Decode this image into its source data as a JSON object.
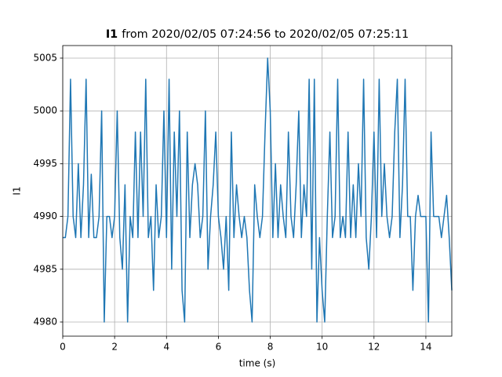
{
  "chart_data": {
    "type": "line",
    "title": {
      "bold": "I1",
      "text": "from 2020/02/05 07:24:56 to 2020/02/05 07:25:11"
    },
    "xlabel": "time (s)",
    "ylabel": "I1",
    "x": [
      0,
      0.1,
      0.2,
      0.3,
      0.4,
      0.5,
      0.6,
      0.7,
      0.8,
      0.9,
      1,
      1.1,
      1.2,
      1.3,
      1.4,
      1.5,
      1.6,
      1.7,
      1.8,
      1.9,
      2,
      2.1,
      2.2,
      2.3,
      2.4,
      2.5,
      2.6,
      2.7,
      2.8,
      2.9,
      3,
      3.1,
      3.2,
      3.3,
      3.4,
      3.5,
      3.6,
      3.7,
      3.8,
      3.9,
      4,
      4.1,
      4.2,
      4.3,
      4.4,
      4.5,
      4.6,
      4.7,
      4.8,
      4.9,
      5,
      5.1,
      5.2,
      5.3,
      5.4,
      5.5,
      5.6,
      5.7,
      5.8,
      5.9,
      6,
      6.1,
      6.2,
      6.3,
      6.4,
      6.5,
      6.6,
      6.7,
      6.8,
      6.9,
      7,
      7.1,
      7.2,
      7.3,
      7.4,
      7.5,
      7.6,
      7.7,
      7.8,
      7.9,
      8,
      8.1,
      8.2,
      8.3,
      8.4,
      8.5,
      8.6,
      8.7,
      8.8,
      8.9,
      9,
      9.1,
      9.2,
      9.3,
      9.4,
      9.5,
      9.6,
      9.7,
      9.8,
      9.9,
      10,
      10.1,
      10.2,
      10.3,
      10.4,
      10.5,
      10.6,
      10.7,
      10.8,
      10.9,
      11,
      11.1,
      11.2,
      11.3,
      11.4,
      11.5,
      11.6,
      11.7,
      11.8,
      11.9,
      12,
      12.1,
      12.2,
      12.3,
      12.4,
      12.5,
      12.6,
      12.7,
      12.8,
      12.9,
      13,
      13.1,
      13.2,
      13.3,
      13.4,
      13.5,
      13.6,
      13.7,
      13.8,
      13.9,
      14,
      14.1,
      14.2,
      14.3,
      14.4,
      14.5,
      14.6,
      14.7,
      14.8,
      14.9,
      15
    ],
    "series": [
      {
        "name": "I1",
        "color": "#1f77b4",
        "values": [
          4988,
          4988,
          4990,
          5003,
          4990,
          4988,
          4995,
          4988,
          4993,
          5003,
          4988,
          4994,
          4988,
          4988,
          4990,
          5000,
          4980,
          4990,
          4990,
          4988,
          4990,
          5000,
          4988,
          4985,
          4993,
          4980,
          4990,
          4988,
          4998,
          4988,
          4998,
          4990,
          5003,
          4988,
          4990,
          4983,
          4993,
          4988,
          4990,
          5000,
          4988,
          5003,
          4985,
          4998,
          4990,
          5000,
          4983,
          4980,
          4998,
          4988,
          4993,
          4995,
          4993,
          4988,
          4990,
          5000,
          4985,
          4990,
          4993,
          4998,
          4990,
          4988,
          4985,
          4990,
          4983,
          4998,
          4988,
          4993,
          4990,
          4988,
          4990,
          4988,
          4983,
          4980,
          4993,
          4990,
          4988,
          4990,
          4998,
          5005,
          5000,
          4988,
          4995,
          4988,
          4993,
          4990,
          4988,
          4998,
          4990,
          4988,
          4993,
          5000,
          4988,
          4993,
          4990,
          5003,
          4985,
          5003,
          4980,
          4988,
          4983,
          4980,
          4990,
          4998,
          4988,
          4990,
          5003,
          4988,
          4990,
          4988,
          4998,
          4988,
          4993,
          4988,
          4995,
          4990,
          5003,
          4988,
          4985,
          4990,
          4998,
          4988,
          5003,
          4990,
          4995,
          4990,
          4988,
          4990,
          4998,
          5003,
          4988,
          4993,
          5003,
          4990,
          4990,
          4983,
          4990,
          4992,
          4990,
          4990,
          4990,
          4980,
          4998,
          4990,
          4990,
          4990,
          4988,
          4990,
          4992,
          4988,
          4983
        ]
      }
    ],
    "xlim": [
      0,
      15
    ],
    "ylim": [
      4978.66,
      5006.19
    ],
    "xticks": [
      0,
      2,
      4,
      6,
      8,
      10,
      12,
      14
    ],
    "yticks": [
      4980,
      4985,
      4990,
      4995,
      5000,
      5005
    ],
    "grid": true
  }
}
